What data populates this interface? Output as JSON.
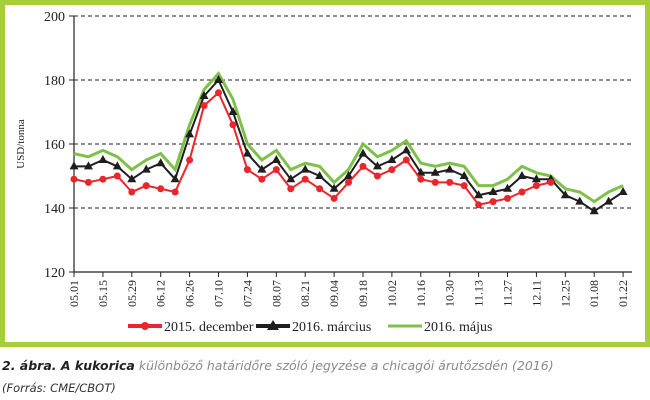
{
  "chart_data": {
    "type": "line",
    "ylabel": "USD/tonna",
    "ylim": [
      120,
      200
    ],
    "yticks": [
      "120",
      "140",
      "160",
      "180",
      "200"
    ],
    "grid": true,
    "legend_position": "bottom",
    "xticks": [
      "05.01",
      "05.15",
      "05.29",
      "06.12",
      "06.26",
      "07.10",
      "07.24",
      "08.07",
      "08.21",
      "09.04",
      "09.18",
      "10.02",
      "10.16",
      "10.30",
      "11.13",
      "11.27",
      "12.11",
      "12.25",
      "01.08",
      "01.22"
    ],
    "x_note": "weekly observations starting 05.01",
    "series": [
      {
        "name": "2015. december",
        "color": "#e8262b",
        "marker": "circle",
        "values": [
          149,
          148,
          149,
          150,
          145,
          147,
          146,
          145,
          155,
          172,
          176,
          166,
          152,
          149,
          152,
          146,
          149,
          146,
          143,
          148,
          153,
          150,
          152,
          155,
          149,
          148,
          148,
          147,
          141,
          142,
          143,
          145,
          147,
          148
        ]
      },
      {
        "name": "2016. március",
        "color": "#1e1e1e",
        "marker": "triangle",
        "values": [
          153,
          153,
          155,
          153,
          149,
          152,
          154,
          149,
          163,
          175,
          180,
          170,
          157,
          152,
          155,
          149,
          152,
          150,
          146,
          150,
          157,
          153,
          155,
          158,
          151,
          151,
          152,
          150,
          144,
          145,
          146,
          150,
          149,
          149,
          144,
          142,
          139,
          142,
          145
        ]
      },
      {
        "name": "2016. május",
        "color": "#7dc14a",
        "marker": "none",
        "values": [
          157,
          156,
          158,
          156,
          152,
          155,
          157,
          152,
          166,
          177,
          182,
          174,
          160,
          155,
          158,
          152,
          154,
          153,
          148,
          152,
          160,
          156,
          158,
          161,
          154,
          153,
          154,
          153,
          147,
          147,
          149,
          153,
          151,
          150,
          146,
          145,
          142,
          145,
          147
        ]
      }
    ]
  },
  "caption": {
    "bold": "2. ábra. A kukorica",
    "rest": " különböző határidőre szóló jegyzése a chicagói árutőzsdén (2016)",
    "source": "(Forrás: CME/CBOT)"
  }
}
